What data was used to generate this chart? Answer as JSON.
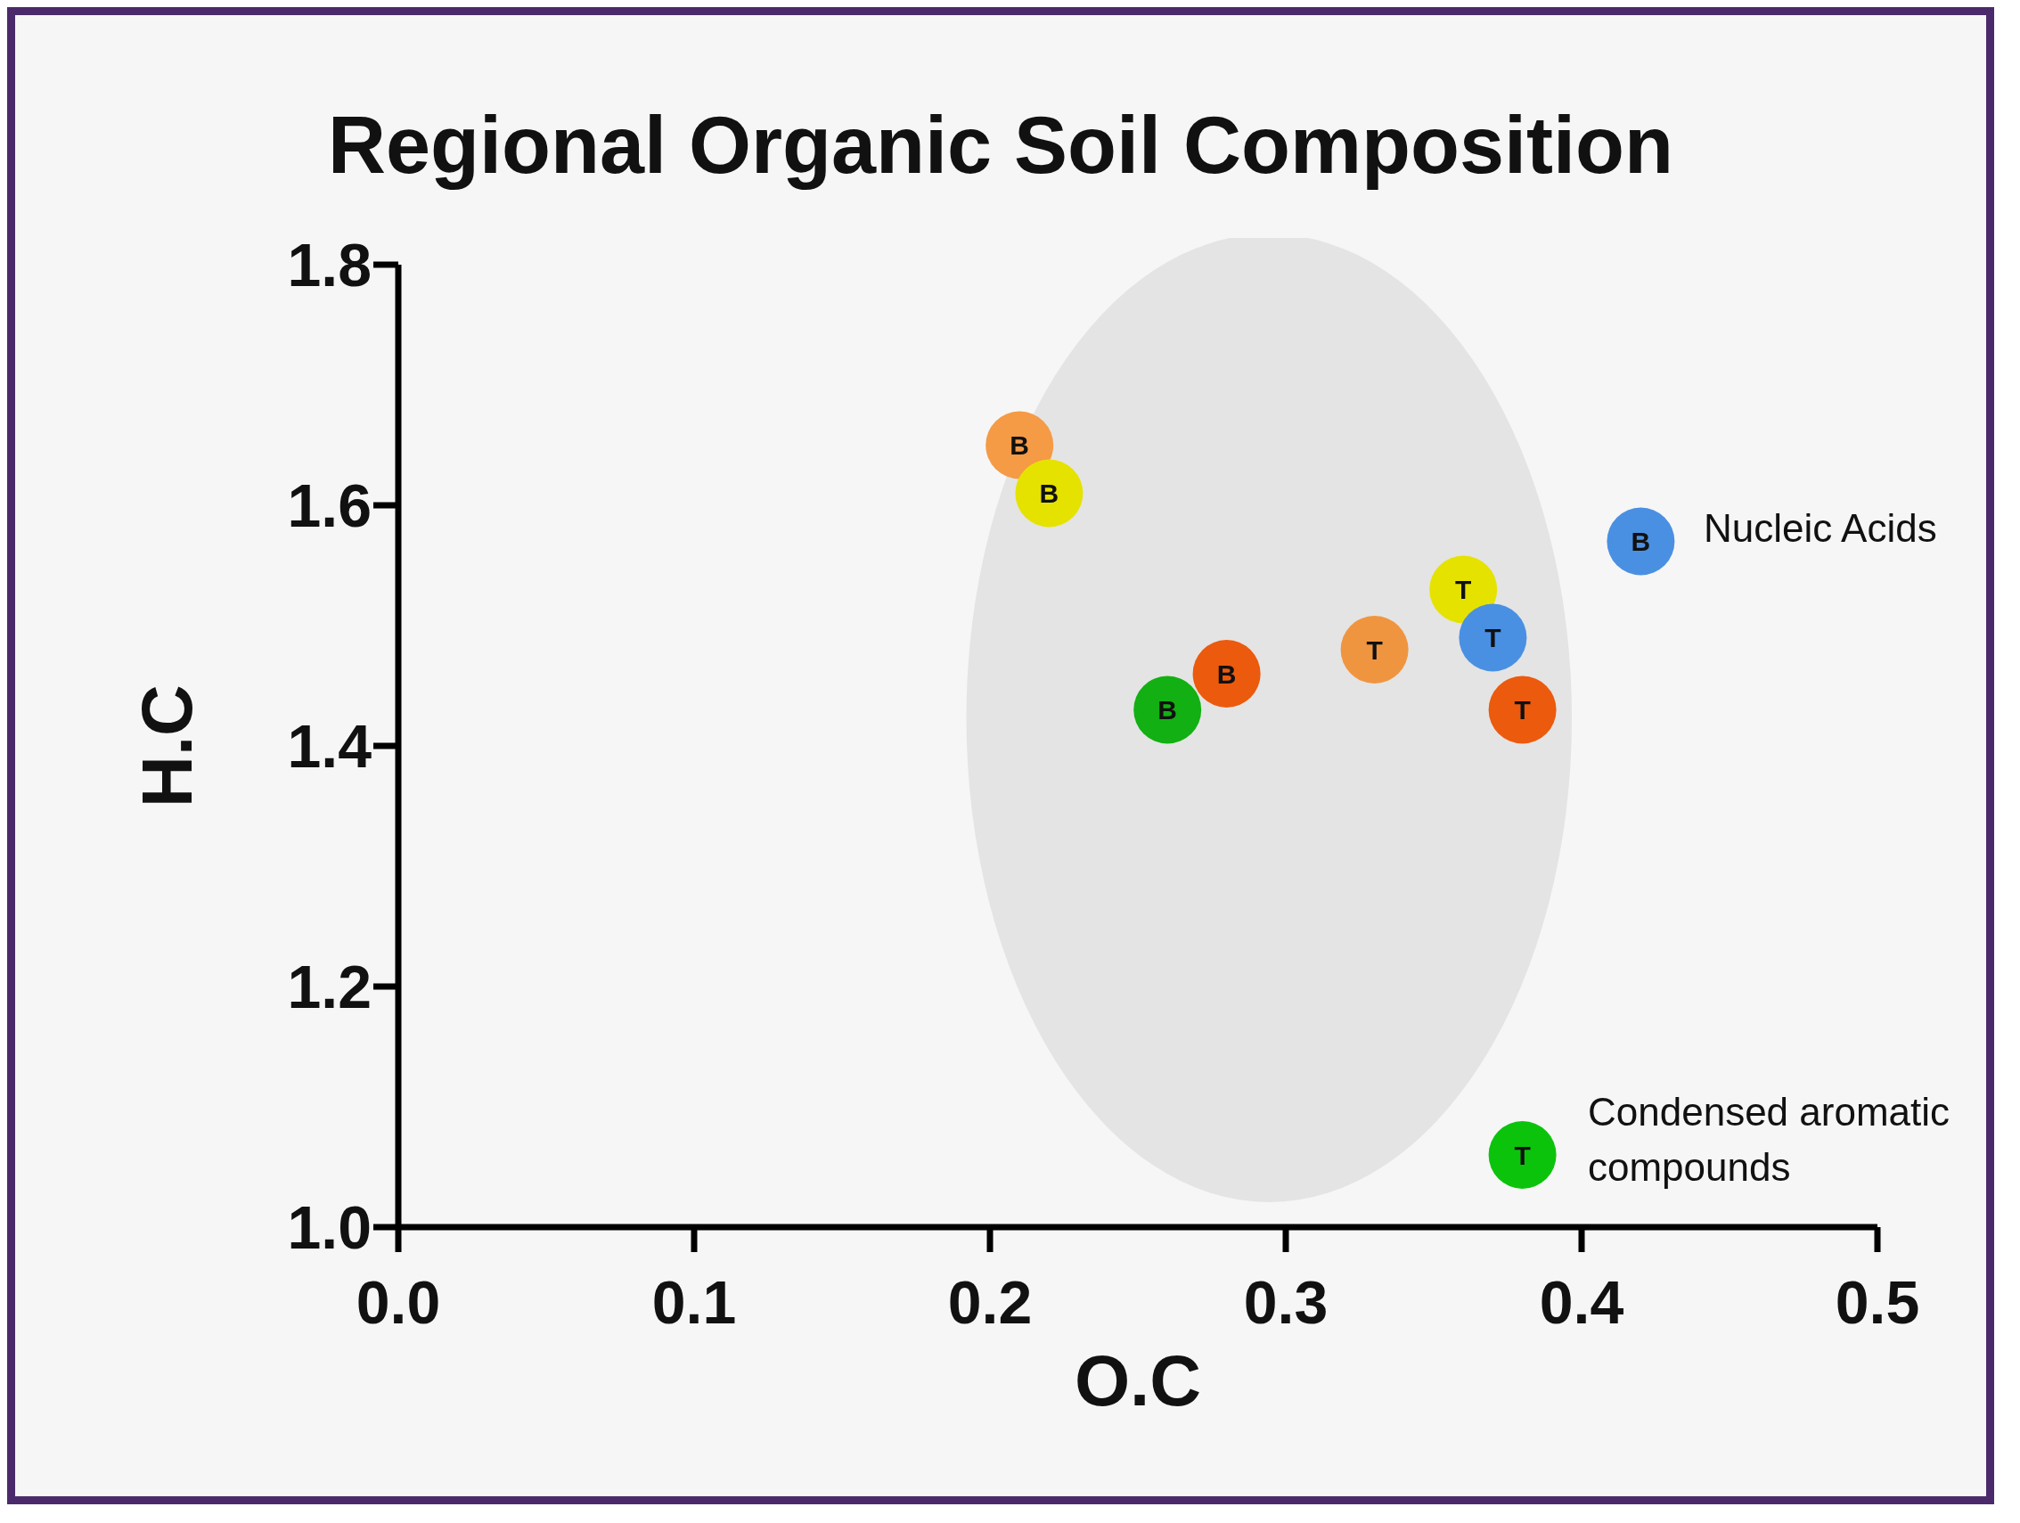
{
  "chart_data": {
    "type": "scatter",
    "title": "Regional Organic Soil Composition",
    "xlabel": "O.C",
    "ylabel": "H.C",
    "x": [
      0.21,
      0.22,
      0.42,
      0.36,
      0.37,
      0.33,
      0.28,
      0.26,
      0.38,
      0.38
    ],
    "values": [
      1.65,
      1.61,
      1.57,
      1.53,
      1.49,
      1.48,
      1.46,
      1.43,
      1.43,
      1.06
    ],
    "colors": [
      "#f59a45",
      "#e6e200",
      "#4a90e2",
      "#e6e200",
      "#4a90e2",
      "#f0953f",
      "#ec5a0d",
      "#12b012",
      "#ec5a0d",
      "#0cc30c"
    ],
    "xlim": [
      0,
      0.5
    ],
    "xticks": [
      {
        "value": 0,
        "label": "0.0"
      },
      0.1,
      0.2,
      0.3,
      0.4,
      0.5
    ],
    "ylim": [
      1,
      1.8
    ],
    "yticks": [
      {
        "value": 1,
        "label": "1.0"
      },
      1.2,
      1.4,
      1.6,
      1.8
    ],
    "marker": "circle",
    "grid": false,
    "legend": false,
    "annotations": [
      {
        "text": "B",
        "x": 0.21,
        "y": 1.65
      },
      {
        "text": "B",
        "x": 0.22,
        "y": 1.61
      },
      {
        "text": "B",
        "x": 0.42,
        "y": 1.57
      },
      {
        "text": "T",
        "x": 0.36,
        "y": 1.53
      },
      {
        "text": "T",
        "x": 0.37,
        "y": 1.49
      },
      {
        "text": "T",
        "x": 0.33,
        "y": 1.48
      },
      {
        "text": "B",
        "x": 0.28,
        "y": 1.46
      },
      {
        "text": "B",
        "x": 0.26,
        "y": 1.43
      },
      {
        "text": "T",
        "x": 0.38,
        "y": 1.43
      },
      {
        "text": "T",
        "x": 0.38,
        "y": 1.06
      },
      "Nucleic Acids",
      "Condensed aromatic compounds"
    ]
  }
}
